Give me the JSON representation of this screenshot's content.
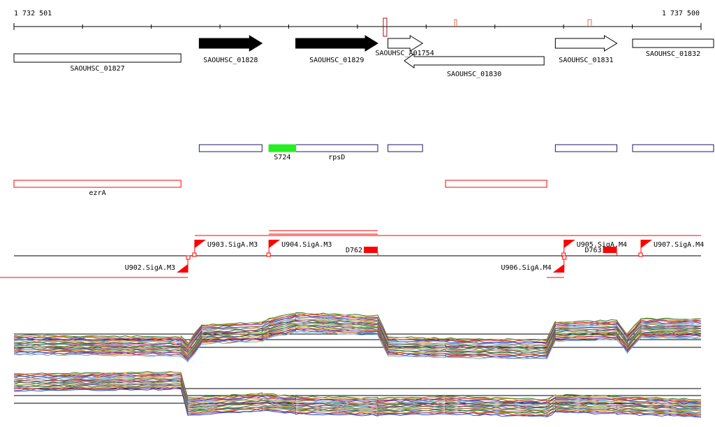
{
  "ruler": {
    "start_label": "1 732 501",
    "end_label": "1 737 500",
    "start": 1732501,
    "end": 1737500
  },
  "colors": {
    "black": "#000000",
    "red": "#ff0000",
    "navy": "#1a1a6e",
    "green": "#22ee22",
    "dark_red": "#a01010",
    "orange_tick": "#e07050"
  },
  "genes": [
    {
      "label": "SAOUHSC_01827",
      "start": 1732501,
      "end": 1733716,
      "strand": "none",
      "filled": false
    },
    {
      "label": "SAOUHSC_01828",
      "start": 1733849,
      "end": 1734306,
      "strand": "+",
      "filled": true
    },
    {
      "label": "SAOUHSC_01829",
      "start": 1734551,
      "end": 1735148,
      "strand": "+",
      "filled": true
    },
    {
      "label": "SAOUHSC_A01754",
      "start": 1735222,
      "end": 1735474,
      "strand": "+",
      "filled": false
    },
    {
      "label": "SAOUHSC_01830",
      "start": 1735341,
      "end": 1736358,
      "strand": "-",
      "filled": false
    },
    {
      "label": "SAOUHSC_01831",
      "start": 1736440,
      "end": 1736888,
      "strand": "+",
      "filled": false
    },
    {
      "label": "SAOUHSC_01832",
      "start": 1737002,
      "end": 1737714,
      "strand": "none",
      "filled": false
    }
  ],
  "blue_boxes": [
    {
      "start": 1733849,
      "end": 1734306
    },
    {
      "start": 1734551,
      "end": 1735148
    },
    {
      "start": 1735222,
      "end": 1735474
    },
    {
      "start": 1736440,
      "end": 1736888
    },
    {
      "start": 1737002,
      "end": 1737714
    }
  ],
  "green_box": {
    "label": "S724",
    "start": 1734356,
    "end": 1734551
  },
  "rpsD_label": "rpsD",
  "red_boxes": [
    {
      "label": "ezrA",
      "start": 1732501,
      "end": 1733716
    },
    {
      "label": "",
      "start": 1735641,
      "end": 1736378
    }
  ],
  "promoters": [
    {
      "label": "U902.SigA.M3",
      "pos": 1733766,
      "strand": "-"
    },
    {
      "label": "U903.SigA.M3",
      "pos": 1733816,
      "strand": "+"
    },
    {
      "label": "U904.SigA.M3",
      "pos": 1734356,
      "strand": "+"
    },
    {
      "label": "U905.SigA.M4",
      "pos": 1736503,
      "strand": "+"
    },
    {
      "label": "U906.SigA.M4",
      "pos": 1736503,
      "strand": "-"
    },
    {
      "label": "U907.SigA.M4",
      "pos": 1737063,
      "strand": "+"
    }
  ],
  "terminators": [
    {
      "label": "D762",
      "pos": 1735148
    },
    {
      "label": "D763",
      "pos": 1736888
    }
  ],
  "tiling": {
    "upper": [
      [
        1732501,
        0.25
      ],
      [
        1733716,
        0.2
      ],
      [
        1733766,
        0.0
      ],
      [
        1733866,
        0.6
      ],
      [
        1734306,
        0.7
      ],
      [
        1734356,
        0.8
      ],
      [
        1734551,
        1.0
      ],
      [
        1735148,
        0.9
      ],
      [
        1735222,
        0.2
      ],
      [
        1735641,
        0.15
      ],
      [
        1736378,
        0.1
      ],
      [
        1736440,
        0.7
      ],
      [
        1736888,
        0.75
      ],
      [
        1736963,
        0.3
      ],
      [
        1737063,
        0.8
      ],
      [
        1737500,
        0.8
      ]
    ],
    "lower": [
      [
        1732501,
        0.9
      ],
      [
        1733716,
        0.95
      ],
      [
        1733766,
        0.1
      ],
      [
        1734306,
        0.25
      ],
      [
        1734551,
        0.15
      ],
      [
        1735148,
        0.1
      ],
      [
        1735641,
        0.15
      ],
      [
        1736378,
        0.05
      ],
      [
        1736440,
        0.2
      ],
      [
        1736888,
        0.15
      ],
      [
        1737500,
        0.05
      ]
    ]
  }
}
